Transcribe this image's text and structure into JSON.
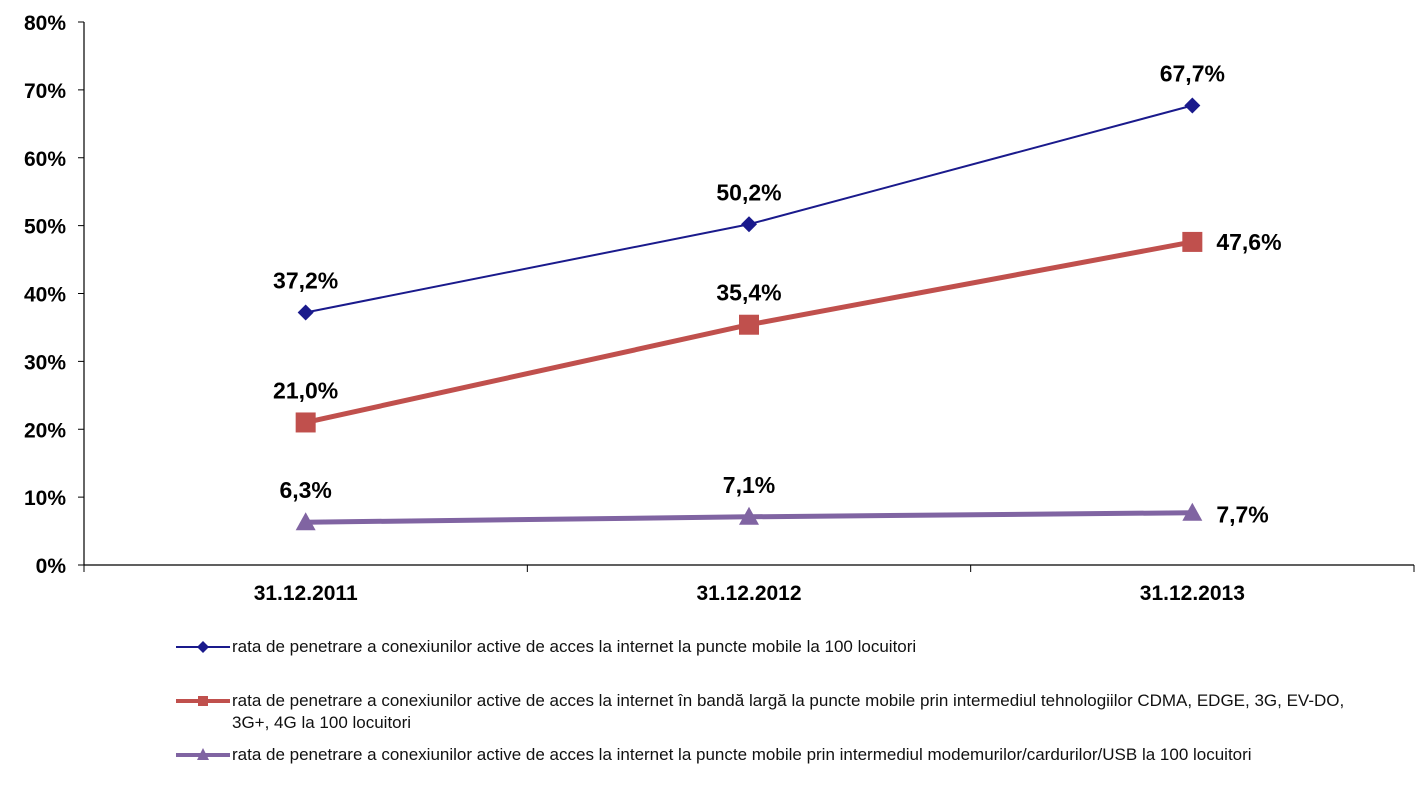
{
  "chart_data": {
    "type": "line",
    "categories": [
      "31.12.2011",
      "31.12.2012",
      "31.12.2013"
    ],
    "ylim": [
      0,
      80
    ],
    "yticks": [
      "0%",
      "10%",
      "20%",
      "30%",
      "40%",
      "50%",
      "60%",
      "70%",
      "80%"
    ],
    "ytick_values": [
      0,
      10,
      20,
      30,
      40,
      50,
      60,
      70,
      80
    ],
    "grid": false,
    "legend_position": "bottom",
    "series": [
      {
        "name": "rata de penetrare a conexiunilor active de acces la internet la puncte mobile la 100 locuitori",
        "values": [
          37.2,
          50.2,
          67.7
        ],
        "labels": [
          "37,2%",
          "50,2%",
          "67,7%"
        ],
        "color": "#1a1a8c",
        "marker": "diamond"
      },
      {
        "name": "rata de penetrare a conexiunilor active de acces la internet în bandă largă la puncte mobile prin intermediul tehnologiilor CDMA, EDGE, 3G, EV-DO, 3G+, 4G la 100 locuitori",
        "values": [
          21.0,
          35.4,
          47.6
        ],
        "labels": [
          "21,0%",
          "35,4%",
          "47,6%"
        ],
        "color": "#c0504d",
        "marker": "square"
      },
      {
        "name": "rata de penetrare a conexiunilor active de acces la internet la puncte mobile prin intermediul modemurilor/cardurilor/USB la 100 locuitori",
        "values": [
          6.3,
          7.1,
          7.7
        ],
        "labels": [
          "6,3%",
          "7,1%",
          "7,7%"
        ],
        "color": "#8064a2",
        "marker": "triangle"
      }
    ]
  }
}
